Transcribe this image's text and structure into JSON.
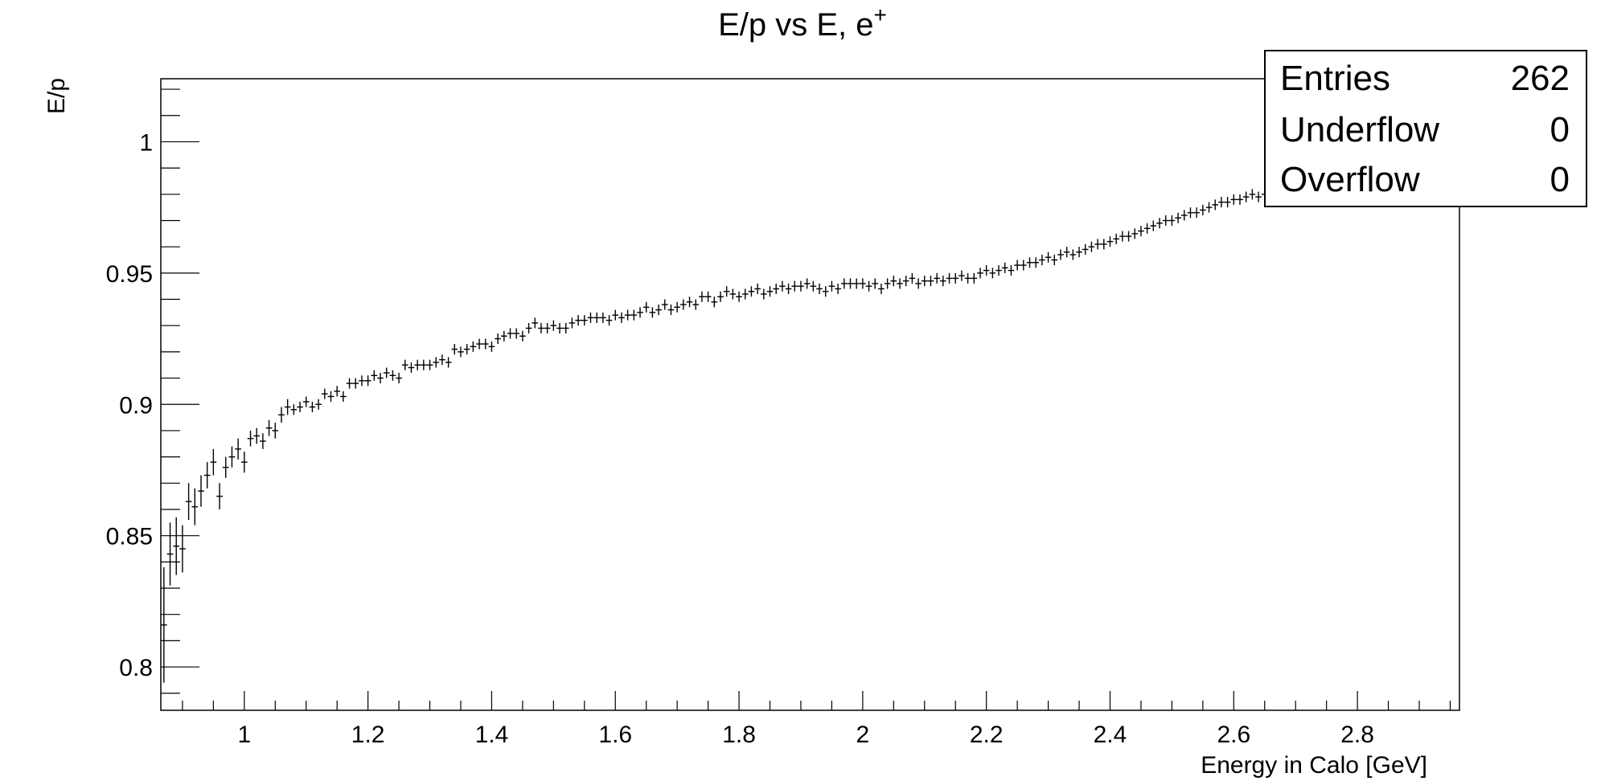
{
  "chart_data": {
    "type": "scatter",
    "title": "E/p vs E, e",
    "title_superscript": "+",
    "xlabel": "Energy in Calo [GeV]",
    "ylabel": "E/p",
    "xlim": [
      0.865,
      2.965
    ],
    "ylim": [
      0.7835,
      1.024
    ],
    "x_ticks": [
      1,
      1.2,
      1.4,
      1.6,
      1.8,
      2,
      2.2,
      2.4,
      2.6,
      2.8
    ],
    "x_tick_labels": [
      "1",
      "1.2",
      "1.4",
      "1.6",
      "1.8",
      "2",
      "2.2",
      "2.4",
      "2.6",
      "2.8"
    ],
    "y_ticks": [
      0.8,
      0.85,
      0.9,
      0.95,
      1.0
    ],
    "y_tick_labels": [
      "0.8",
      "0.85",
      "0.9",
      "0.95",
      "1"
    ],
    "marker": "cross-with-error-bars",
    "series": [
      {
        "points": [
          [
            0.87,
            0.816,
            0.022
          ],
          [
            0.88,
            0.843,
            0.012
          ],
          [
            0.89,
            0.846,
            0.011
          ],
          [
            0.9,
            0.845,
            0.009
          ],
          [
            0.91,
            0.863,
            0.007
          ],
          [
            0.92,
            0.861,
            0.007
          ],
          [
            0.93,
            0.867,
            0.006
          ],
          [
            0.94,
            0.873,
            0.005
          ],
          [
            0.95,
            0.878,
            0.005
          ],
          [
            0.96,
            0.865,
            0.005
          ],
          [
            0.97,
            0.876,
            0.004
          ],
          [
            0.98,
            0.88,
            0.004
          ],
          [
            0.99,
            0.883,
            0.004
          ],
          [
            1.0,
            0.878,
            0.004
          ],
          [
            1.01,
            0.887,
            0.003
          ],
          [
            1.02,
            0.888,
            0.003
          ],
          [
            1.03,
            0.886,
            0.003
          ],
          [
            1.04,
            0.891,
            0.003
          ],
          [
            1.05,
            0.89,
            0.003
          ],
          [
            1.06,
            0.896,
            0.003
          ],
          [
            1.07,
            0.899,
            0.003
          ],
          [
            1.08,
            0.898,
            0.002
          ],
          [
            1.09,
            0.899,
            0.002
          ],
          [
            1.1,
            0.901,
            0.002
          ],
          [
            1.11,
            0.899,
            0.002
          ],
          [
            1.12,
            0.9,
            0.002
          ],
          [
            1.13,
            0.904,
            0.002
          ],
          [
            1.14,
            0.903,
            0.002
          ],
          [
            1.15,
            0.905,
            0.002
          ],
          [
            1.16,
            0.903,
            0.002
          ],
          [
            1.17,
            0.908,
            0.002
          ],
          [
            1.18,
            0.908,
            0.002
          ],
          [
            1.19,
            0.909,
            0.002
          ],
          [
            1.2,
            0.909,
            0.002
          ],
          [
            1.21,
            0.911,
            0.002
          ],
          [
            1.22,
            0.91,
            0.002
          ],
          [
            1.23,
            0.912,
            0.002
          ],
          [
            1.24,
            0.911,
            0.002
          ],
          [
            1.25,
            0.91,
            0.002
          ],
          [
            1.26,
            0.915,
            0.002
          ],
          [
            1.27,
            0.914,
            0.002
          ],
          [
            1.28,
            0.915,
            0.002
          ],
          [
            1.29,
            0.915,
            0.002
          ],
          [
            1.3,
            0.915,
            0.002
          ],
          [
            1.31,
            0.916,
            0.002
          ],
          [
            1.32,
            0.917,
            0.002
          ],
          [
            1.33,
            0.916,
            0.002
          ],
          [
            1.34,
            0.921,
            0.002
          ],
          [
            1.35,
            0.92,
            0.002
          ],
          [
            1.36,
            0.921,
            0.002
          ],
          [
            1.37,
            0.922,
            0.002
          ],
          [
            1.38,
            0.923,
            0.002
          ],
          [
            1.39,
            0.923,
            0.002
          ],
          [
            1.4,
            0.922,
            0.002
          ],
          [
            1.41,
            0.925,
            0.002
          ],
          [
            1.42,
            0.926,
            0.002
          ],
          [
            1.43,
            0.927,
            0.002
          ],
          [
            1.44,
            0.927,
            0.002
          ],
          [
            1.45,
            0.926,
            0.002
          ],
          [
            1.46,
            0.929,
            0.002
          ],
          [
            1.47,
            0.931,
            0.002
          ],
          [
            1.48,
            0.929,
            0.002
          ],
          [
            1.49,
            0.929,
            0.002
          ],
          [
            1.5,
            0.93,
            0.002
          ],
          [
            1.51,
            0.929,
            0.002
          ],
          [
            1.52,
            0.929,
            0.002
          ],
          [
            1.53,
            0.931,
            0.002
          ],
          [
            1.54,
            0.932,
            0.002
          ],
          [
            1.55,
            0.932,
            0.002
          ],
          [
            1.56,
            0.933,
            0.002
          ],
          [
            1.57,
            0.933,
            0.002
          ],
          [
            1.58,
            0.933,
            0.002
          ],
          [
            1.59,
            0.932,
            0.002
          ],
          [
            1.6,
            0.934,
            0.002
          ],
          [
            1.61,
            0.933,
            0.002
          ],
          [
            1.62,
            0.934,
            0.002
          ],
          [
            1.63,
            0.934,
            0.002
          ],
          [
            1.64,
            0.935,
            0.002
          ],
          [
            1.65,
            0.937,
            0.002
          ],
          [
            1.66,
            0.935,
            0.002
          ],
          [
            1.67,
            0.936,
            0.002
          ],
          [
            1.68,
            0.938,
            0.002
          ],
          [
            1.69,
            0.936,
            0.002
          ],
          [
            1.7,
            0.937,
            0.002
          ],
          [
            1.71,
            0.938,
            0.002
          ],
          [
            1.72,
            0.939,
            0.002
          ],
          [
            1.73,
            0.938,
            0.002
          ],
          [
            1.74,
            0.941,
            0.002
          ],
          [
            1.75,
            0.941,
            0.002
          ],
          [
            1.76,
            0.939,
            0.002
          ],
          [
            1.77,
            0.941,
            0.002
          ],
          [
            1.78,
            0.943,
            0.002
          ],
          [
            1.79,
            0.942,
            0.002
          ],
          [
            1.8,
            0.941,
            0.002
          ],
          [
            1.81,
            0.942,
            0.002
          ],
          [
            1.82,
            0.943,
            0.002
          ],
          [
            1.83,
            0.944,
            0.002
          ],
          [
            1.84,
            0.942,
            0.002
          ],
          [
            1.85,
            0.943,
            0.002
          ],
          [
            1.86,
            0.944,
            0.002
          ],
          [
            1.87,
            0.945,
            0.002
          ],
          [
            1.88,
            0.944,
            0.002
          ],
          [
            1.89,
            0.945,
            0.002
          ],
          [
            1.9,
            0.945,
            0.002
          ],
          [
            1.91,
            0.946,
            0.002
          ],
          [
            1.92,
            0.945,
            0.002
          ],
          [
            1.93,
            0.944,
            0.002
          ],
          [
            1.94,
            0.943,
            0.002
          ],
          [
            1.95,
            0.945,
            0.002
          ],
          [
            1.96,
            0.944,
            0.002
          ],
          [
            1.97,
            0.946,
            0.002
          ],
          [
            1.98,
            0.946,
            0.002
          ],
          [
            1.99,
            0.946,
            0.002
          ],
          [
            2.0,
            0.946,
            0.002
          ],
          [
            2.01,
            0.945,
            0.002
          ],
          [
            2.02,
            0.946,
            0.002
          ],
          [
            2.03,
            0.944,
            0.002
          ],
          [
            2.04,
            0.946,
            0.002
          ],
          [
            2.05,
            0.947,
            0.002
          ],
          [
            2.06,
            0.946,
            0.002
          ],
          [
            2.07,
            0.947,
            0.002
          ],
          [
            2.08,
            0.948,
            0.002
          ],
          [
            2.09,
            0.946,
            0.002
          ],
          [
            2.1,
            0.947,
            0.002
          ],
          [
            2.11,
            0.947,
            0.002
          ],
          [
            2.12,
            0.948,
            0.002
          ],
          [
            2.13,
            0.947,
            0.002
          ],
          [
            2.14,
            0.948,
            0.002
          ],
          [
            2.15,
            0.948,
            0.002
          ],
          [
            2.16,
            0.949,
            0.002
          ],
          [
            2.17,
            0.948,
            0.002
          ],
          [
            2.18,
            0.948,
            0.002
          ],
          [
            2.19,
            0.95,
            0.002
          ],
          [
            2.2,
            0.951,
            0.002
          ],
          [
            2.21,
            0.95,
            0.002
          ],
          [
            2.22,
            0.951,
            0.002
          ],
          [
            2.23,
            0.952,
            0.002
          ],
          [
            2.24,
            0.951,
            0.002
          ],
          [
            2.25,
            0.953,
            0.002
          ],
          [
            2.26,
            0.953,
            0.002
          ],
          [
            2.27,
            0.954,
            0.002
          ],
          [
            2.28,
            0.954,
            0.002
          ],
          [
            2.29,
            0.955,
            0.002
          ],
          [
            2.3,
            0.956,
            0.002
          ],
          [
            2.31,
            0.955,
            0.002
          ],
          [
            2.32,
            0.957,
            0.002
          ],
          [
            2.33,
            0.958,
            0.002
          ],
          [
            2.34,
            0.957,
            0.002
          ],
          [
            2.35,
            0.958,
            0.002
          ],
          [
            2.36,
            0.959,
            0.002
          ],
          [
            2.37,
            0.96,
            0.002
          ],
          [
            2.38,
            0.961,
            0.002
          ],
          [
            2.39,
            0.961,
            0.002
          ],
          [
            2.4,
            0.962,
            0.002
          ],
          [
            2.41,
            0.963,
            0.002
          ],
          [
            2.42,
            0.964,
            0.002
          ],
          [
            2.43,
            0.964,
            0.002
          ],
          [
            2.44,
            0.965,
            0.002
          ],
          [
            2.45,
            0.966,
            0.002
          ],
          [
            2.46,
            0.967,
            0.002
          ],
          [
            2.47,
            0.968,
            0.002
          ],
          [
            2.48,
            0.969,
            0.002
          ],
          [
            2.49,
            0.97,
            0.002
          ],
          [
            2.5,
            0.97,
            0.002
          ],
          [
            2.51,
            0.971,
            0.002
          ],
          [
            2.52,
            0.972,
            0.002
          ],
          [
            2.53,
            0.973,
            0.002
          ],
          [
            2.54,
            0.973,
            0.002
          ],
          [
            2.55,
            0.974,
            0.002
          ],
          [
            2.56,
            0.975,
            0.002
          ],
          [
            2.57,
            0.976,
            0.002
          ],
          [
            2.58,
            0.977,
            0.002
          ],
          [
            2.59,
            0.977,
            0.002
          ],
          [
            2.6,
            0.978,
            0.002
          ],
          [
            2.61,
            0.978,
            0.002
          ],
          [
            2.62,
            0.979,
            0.002
          ],
          [
            2.63,
            0.98,
            0.002
          ],
          [
            2.64,
            0.979,
            0.002
          ],
          [
            2.65,
            0.98,
            0.002
          ],
          [
            2.66,
            0.984,
            0.002
          ],
          [
            2.67,
            0.982,
            0.002
          ]
        ]
      }
    ]
  },
  "stats": {
    "rows": [
      {
        "label": "Entries",
        "value": "262"
      },
      {
        "label": "Underflow",
        "value": "0"
      },
      {
        "label": "Overflow",
        "value": "0"
      }
    ]
  }
}
